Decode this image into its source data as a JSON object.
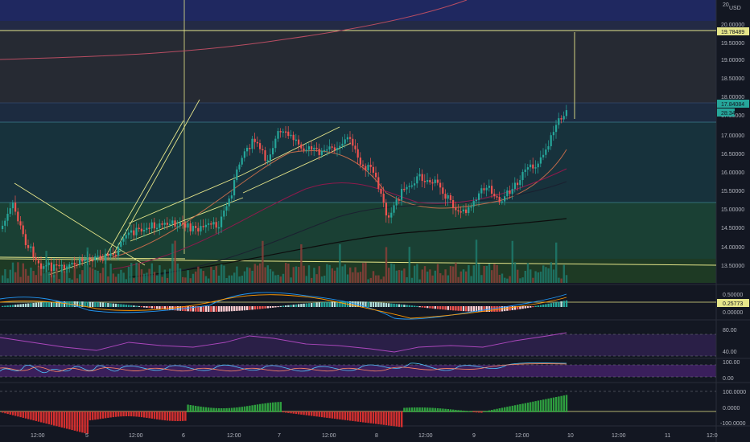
{
  "price_axis": {
    "currency": "USD",
    "top_label": "20",
    "ticks": [
      "20.00000",
      "19.50000",
      "19.00000",
      "18.50000",
      "18.00000",
      "17.50000",
      "17.00000",
      "16.50000",
      "16.00000",
      "15.50000",
      "15.00000",
      "14.50000",
      "14.00000",
      "13.50000"
    ],
    "marker_resistance": "19.78489",
    "marker_price": "17.84084",
    "countdown": "28:34"
  },
  "macd_axis": {
    "ticks": [
      "0.50000",
      "0.00000"
    ],
    "marker": "0.25773"
  },
  "rsi_axis": {
    "ticks": [
      "80.00",
      "40.00"
    ]
  },
  "stoch_axis": {
    "ticks": [
      "100.00",
      "0.00"
    ]
  },
  "osc_axis": {
    "ticks": [
      "100.0000",
      "0.0000",
      "-100.0000"
    ]
  },
  "time_axis": {
    "ticks": [
      "12:00",
      "5",
      "12:00",
      "6",
      "12:00",
      "7",
      "12:00",
      "8",
      "12:00",
      "9",
      "12:00",
      "10",
      "12:00",
      "11",
      "12:0"
    ]
  },
  "colors": {
    "background": "#131722",
    "up": "#26a69a",
    "down": "#ef5350",
    "trendline": "#e6e68a",
    "resistance_zone": "#1e2a5c",
    "support_zone": "#1b4d3e"
  }
}
